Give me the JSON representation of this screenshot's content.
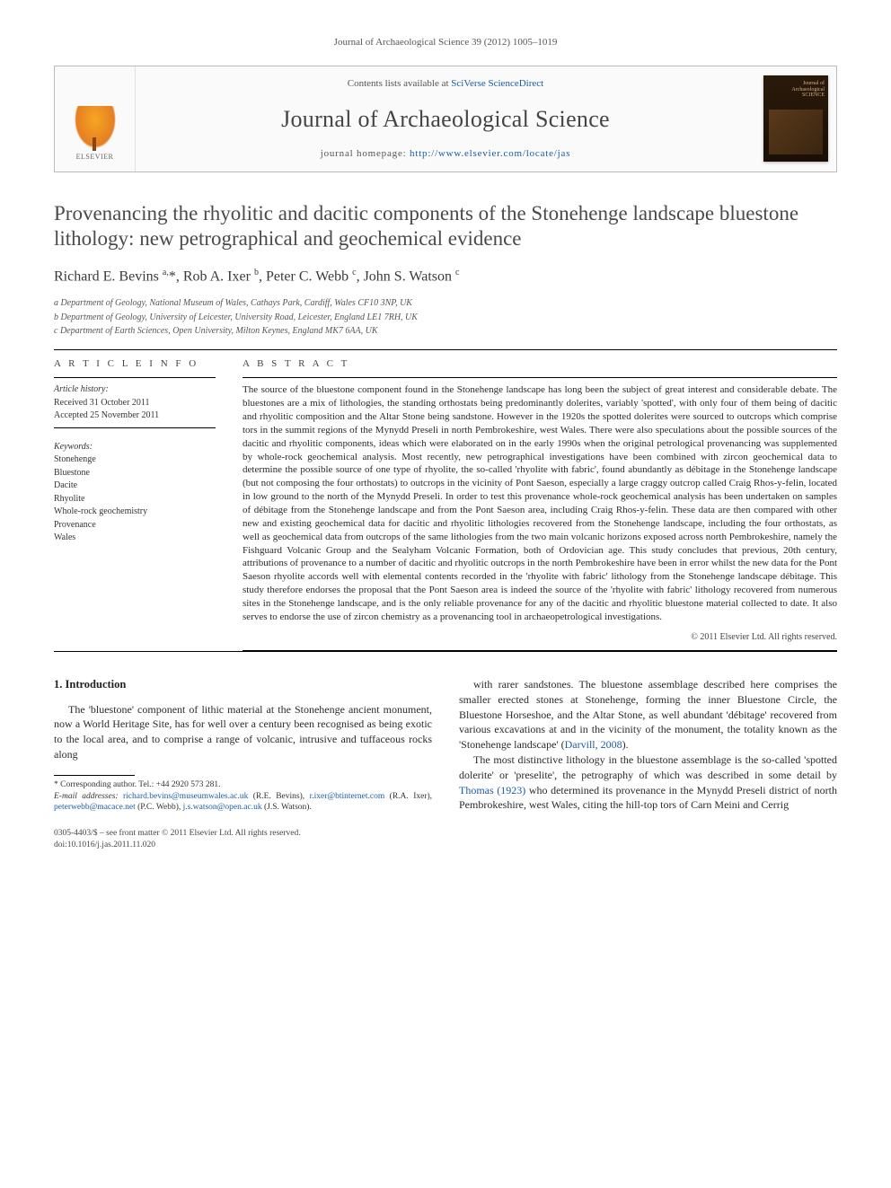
{
  "running_head": "Journal of Archaeological Science 39 (2012) 1005–1019",
  "masthead": {
    "publisher": "ELSEVIER",
    "contents_prefix": "Contents lists available at ",
    "contents_link": "SciVerse ScienceDirect",
    "journal_name": "Journal of Archaeological Science",
    "homepage_prefix": "journal homepage: ",
    "homepage_url": "http://www.elsevier.com/locate/jas",
    "cover_title_line1": "Journal of",
    "cover_title_line2": "Archaeological",
    "cover_title_line3": "SCIENCE"
  },
  "article": {
    "title": "Provenancing the rhyolitic and dacitic components of the Stonehenge landscape bluestone lithology: new petrographical and geochemical evidence",
    "authors_html": "Richard E. Bevins <sup>a,</sup>*, Rob A. Ixer <sup>b</sup>, Peter C. Webb <sup>c</sup>, John S. Watson <sup>c</sup>",
    "affiliations": [
      "a Department of Geology, National Museum of Wales, Cathays Park, Cardiff, Wales CF10 3NP, UK",
      "b Department of Geology, University of Leicester, University Road, Leicester, England LE1 7RH, UK",
      "c Department of Earth Sciences, Open University, Milton Keynes, England MK7 6AA, UK"
    ]
  },
  "info": {
    "heading": "A R T I C L E  I N F O",
    "history_label": "Article history:",
    "received": "Received 31 October 2011",
    "accepted": "Accepted 25 November 2011",
    "keywords_label": "Keywords:",
    "keywords": [
      "Stonehenge",
      "Bluestone",
      "Dacite",
      "Rhyolite",
      "Whole-rock geochemistry",
      "Provenance",
      "Wales"
    ]
  },
  "abstract": {
    "heading": "A B S T R A C T",
    "text": "The source of the bluestone component found in the Stonehenge landscape has long been the subject of great interest and considerable debate. The bluestones are a mix of lithologies, the standing orthostats being predominantly dolerites, variably 'spotted', with only four of them being of dacitic and rhyolitic composition and the Altar Stone being sandstone. However in the 1920s the spotted dolerites were sourced to outcrops which comprise tors in the summit regions of the Mynydd Preseli in north Pembrokeshire, west Wales. There were also speculations about the possible sources of the dacitic and rhyolitic components, ideas which were elaborated on in the early 1990s when the original petrological provenancing was supplemented by whole-rock geochemical analysis. Most recently, new petrographical investigations have been combined with zircon geochemical data to determine the possible source of one type of rhyolite, the so-called 'rhyolite with fabric', found abundantly as débitage in the Stonehenge landscape (but not composing the four orthostats) to outcrops in the vicinity of Pont Saeson, especially a large craggy outcrop called Craig Rhos-y-felin, located in low ground to the north of the Mynydd Preseli. In order to test this provenance whole-rock geochemical analysis has been undertaken on samples of débitage from the Stonehenge landscape and from the Pont Saeson area, including Craig Rhos-y-felin. These data are then compared with other new and existing geochemical data for dacitic and rhyolitic lithologies recovered from the Stonehenge landscape, including the four orthostats, as well as geochemical data from outcrops of the same lithologies from the two main volcanic horizons exposed across north Pembrokeshire, namely the Fishguard Volcanic Group and the Sealyham Volcanic Formation, both of Ordovician age. This study concludes that previous, 20th century, attributions of provenance to a number of dacitic and rhyolitic outcrops in the north Pembrokeshire have been in error whilst the new data for the Pont Saeson rhyolite accords well with elemental contents recorded in the 'rhyolite with fabric' lithology from the Stonehenge landscape débitage. This study therefore endorses the proposal that the Pont Saeson area is indeed the source of the 'rhyolite with fabric' lithology recovered from numerous sites in the Stonehenge landscape, and is the only reliable provenance for any of the dacitic and rhyolitic bluestone material collected to date. It also serves to endorse the use of zircon chemistry as a provenancing tool in archaeopetrological investigations.",
    "copyright": "© 2011 Elsevier Ltd. All rights reserved."
  },
  "body": {
    "section_number": "1.",
    "section_title": "Introduction",
    "left_para": "The 'bluestone' component of lithic material at the Stonehenge ancient monument, now a World Heritage Site, has for well over a century been recognised as being exotic to the local area, and to comprise a range of volcanic, intrusive and tuffaceous rocks along",
    "right_para1": "with rarer sandstones. The bluestone assemblage described here comprises the smaller erected stones at Stonehenge, forming the inner Bluestone Circle, the Bluestone Horseshoe, and the Altar Stone, as well abundant 'débitage' recovered from various excavations at and in the vicinity of the monument, the totality known as the 'Stonehenge landscape' (",
    "right_cite1": "Darvill, 2008",
    "right_para1_end": ").",
    "right_para2": "The most distinctive lithology in the bluestone assemblage is the so-called 'spotted dolerite' or 'preselite', the petrography of which was described in some detail by ",
    "right_cite2": "Thomas (1923)",
    "right_para2_end": " who determined its provenance in the Mynydd Preseli district of north Pembrokeshire, west Wales, citing the hill-top tors of Carn Meini and Cerrig"
  },
  "footnotes": {
    "corr_label": "* Corresponding author. Tel.: +44 2920 573 281.",
    "email_label": "E-mail addresses:",
    "emails": [
      {
        "addr": "richard.bevins@museumwales.ac.uk",
        "who": "(R.E. Bevins)"
      },
      {
        "addr": "r.ixer@btinternet.com",
        "who": "(R.A. Ixer)"
      },
      {
        "addr": "peterwebb@macace.net",
        "who": "(P.C. Webb)"
      },
      {
        "addr": "j.s.watson@open.ac.uk",
        "who": "(J.S. Watson)"
      }
    ]
  },
  "footer": {
    "line1": "0305-4403/$ – see front matter © 2011 Elsevier Ltd. All rights reserved.",
    "line2": "doi:10.1016/j.jas.2011.11.020"
  },
  "colors": {
    "link": "#1a5ca8",
    "text": "#2a2a2a",
    "heading": "#4a4a4a",
    "border": "#bbb"
  }
}
